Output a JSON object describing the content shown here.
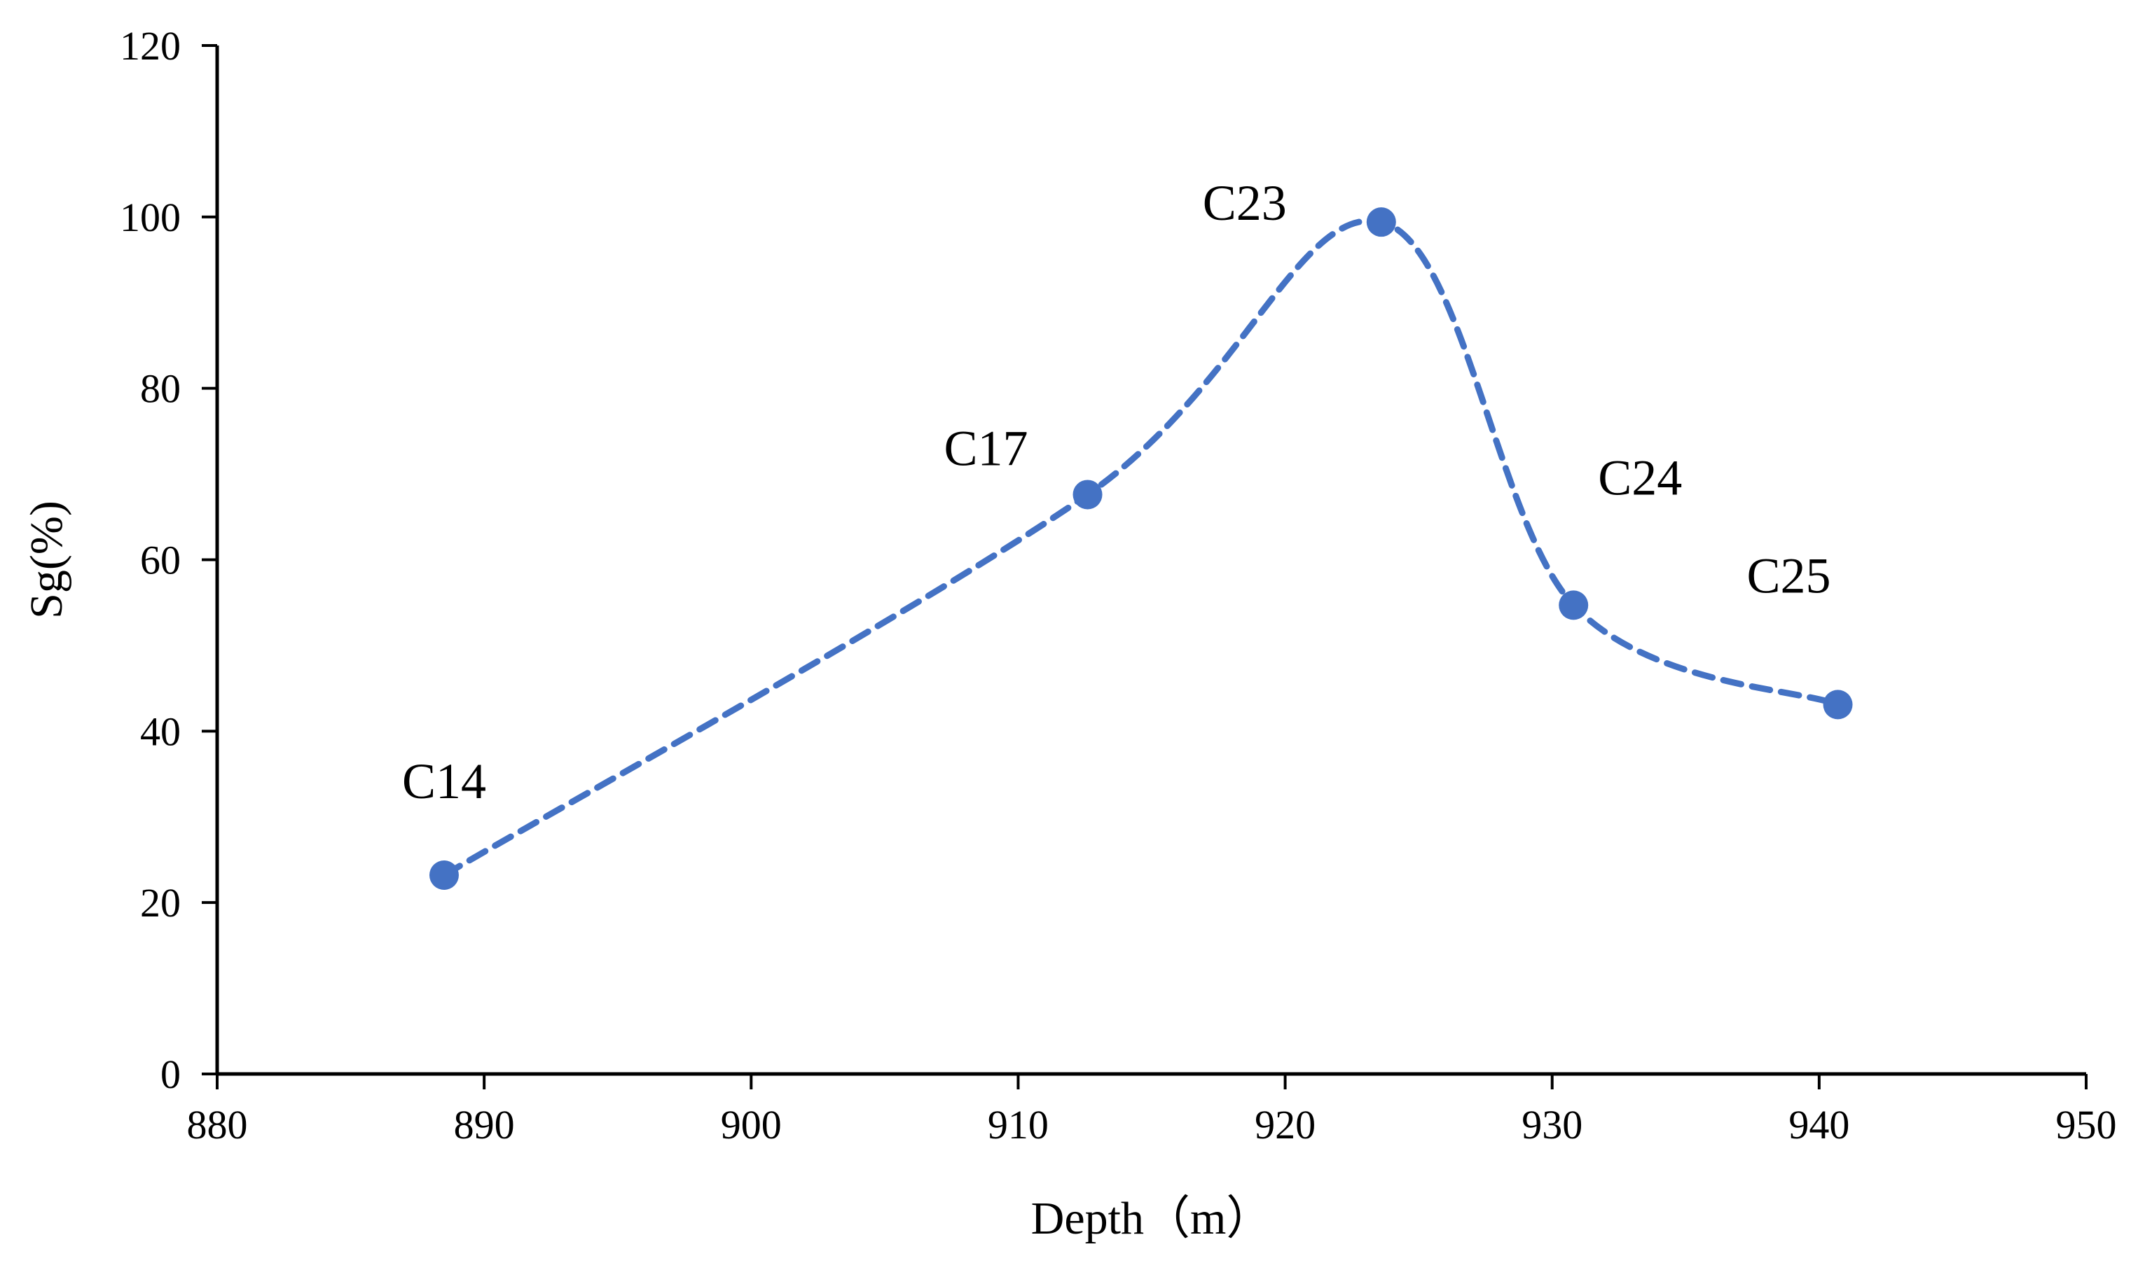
{
  "chart_data": {
    "type": "line",
    "title": "",
    "xlabel": "Depth（m）",
    "ylabel": "Sg(%)",
    "xlim": [
      880,
      950
    ],
    "ylim": [
      0,
      120
    ],
    "xticks": [
      880,
      890,
      900,
      910,
      920,
      930,
      940,
      950
    ],
    "yticks": [
      0,
      20,
      40,
      60,
      80,
      100,
      120
    ],
    "grid": false,
    "line_style": "dashed-smooth",
    "series": [
      {
        "name": "Sg",
        "color": "#4472C4",
        "points": [
          {
            "label": "C14",
            "x": 888.5,
            "y": 23.2
          },
          {
            "label": "C17",
            "x": 912.6,
            "y": 67.6
          },
          {
            "label": "C23",
            "x": 923.6,
            "y": 99.4
          },
          {
            "label": "C24",
            "x": 930.8,
            "y": 54.7
          },
          {
            "label": "C25",
            "x": 940.7,
            "y": 43.1
          }
        ]
      }
    ]
  }
}
